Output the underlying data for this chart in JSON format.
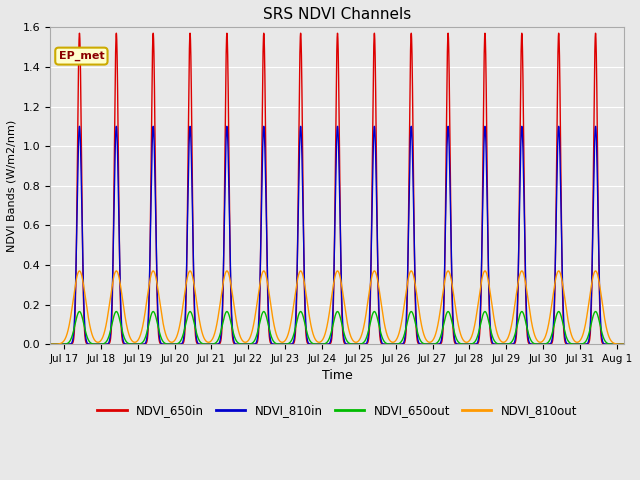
{
  "title": "SRS NDVI Channels",
  "xlabel": "Time",
  "ylabel": "NDVI Bands (W/m2/nm)",
  "ylim": [
    0.0,
    1.6
  ],
  "yticks": [
    0.0,
    0.2,
    0.4,
    0.6,
    0.8,
    1.0,
    1.2,
    1.4,
    1.6
  ],
  "annotation": "EP_met",
  "background_color": "#e8e8e8",
  "fig_facecolor": "#e8e8e8",
  "series": [
    {
      "name": "NDVI_650in",
      "color": "#dd0000",
      "peak": 1.57,
      "sigma": 0.055
    },
    {
      "name": "NDVI_810in",
      "color": "#0000cc",
      "peak": 1.1,
      "sigma": 0.065
    },
    {
      "name": "NDVI_650out",
      "color": "#00bb00",
      "peak": 0.165,
      "sigma": 0.12
    },
    {
      "name": "NDVI_810out",
      "color": "#ff9900",
      "peak": 0.37,
      "sigma": 0.17
    }
  ],
  "start_day": 16.62,
  "end_day": 32.2,
  "peak_days": [
    17.42,
    18.42,
    19.42,
    20.42,
    21.42,
    22.42,
    23.42,
    24.42,
    25.42,
    26.42,
    27.42,
    28.42,
    29.42,
    30.42,
    31.42
  ],
  "x_tick_labels": [
    "Jul 17",
    "Jul 18",
    "Jul 19",
    "Jul 20",
    "Jul 21",
    "Jul 22",
    "Jul 23",
    "Jul 24",
    "Jul 25",
    "Jul 26",
    "Jul 27",
    "Jul 28",
    "Jul 29",
    "Jul 30",
    "Jul 31",
    "Aug 1"
  ],
  "x_tick_positions": [
    17,
    18,
    19,
    20,
    21,
    22,
    23,
    24,
    25,
    26,
    27,
    28,
    29,
    30,
    31,
    32
  ],
  "grid_color": "#d0d0d0",
  "linewidth": 1.0
}
